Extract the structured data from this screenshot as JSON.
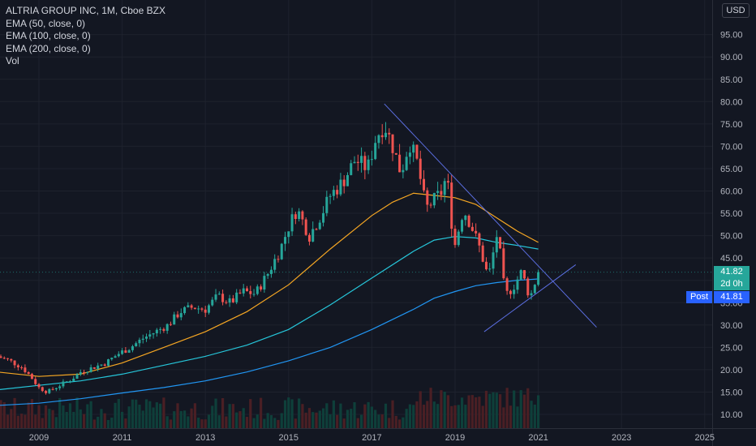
{
  "legend": {
    "title": "ALTRIA GROUP INC, 1M, Cboe BZX",
    "ema50": "EMA (50, close, 0)",
    "ema100": "EMA (100, close, 0)",
    "ema200": "EMA (200, close, 0)",
    "vol": "Vol"
  },
  "currency": "USD",
  "price_tag": "41.82",
  "countdown": "2d 0h",
  "post_label": "Post",
  "post_value": "41.81",
  "colors": {
    "background": "#131722",
    "grid": "#1e222d",
    "text": "#b2b5be",
    "up": "#26a69a",
    "down": "#ef5350",
    "vol_up": "#0e3f3a",
    "vol_down": "#4a1f24",
    "ema50": "#f5a623",
    "ema100": "#26c6da",
    "ema200": "#2196f3",
    "trendline": "#5b6ee1",
    "crosshair": "#2962ff"
  },
  "chart_data": {
    "type": "candlestick",
    "x_unit": "year",
    "y_unit": "USD",
    "y_ticks": [
      10,
      15,
      20,
      25,
      30,
      35,
      40,
      45,
      50,
      55,
      60,
      65,
      70,
      75,
      80,
      85,
      90,
      95
    ],
    "y_tick_labels": [
      "10.00",
      "15.00",
      "20.00",
      "25.00",
      "30.00",
      "35.00",
      "40.00",
      "45.00",
      "50.00",
      "55.00",
      "60.00",
      "65.00",
      "70.00",
      "75.00",
      "80.00",
      "85.00",
      "90.00",
      "95.00"
    ],
    "x_ticks": [
      2009,
      2011,
      2013,
      2015,
      2017,
      2019,
      2021,
      2023,
      2025
    ],
    "x_tick_labels": [
      "2009",
      "2011",
      "2013",
      "2015",
      "2017",
      "2019",
      "2021",
      "2023",
      "2025"
    ],
    "price_path": [
      [
        2008.0,
        23.0
      ],
      [
        2008.3,
        22.0
      ],
      [
        2008.6,
        20.5
      ],
      [
        2008.8,
        18.5
      ],
      [
        2009.0,
        16.0
      ],
      [
        2009.2,
        15.0
      ],
      [
        2009.5,
        16.5
      ],
      [
        2009.8,
        18.0
      ],
      [
        2010.0,
        19.5
      ],
      [
        2010.3,
        20.5
      ],
      [
        2010.6,
        21.5
      ],
      [
        2010.9,
        23.5
      ],
      [
        2011.2,
        25.0
      ],
      [
        2011.5,
        27.0
      ],
      [
        2011.8,
        28.5
      ],
      [
        2012.1,
        30.0
      ],
      [
        2012.4,
        33.0
      ],
      [
        2012.7,
        34.0
      ],
      [
        2013.0,
        33.5
      ],
      [
        2013.3,
        36.5
      ],
      [
        2013.6,
        35.0
      ],
      [
        2013.9,
        37.5
      ],
      [
        2014.2,
        37.0
      ],
      [
        2014.5,
        41.5
      ],
      [
        2014.8,
        47.0
      ],
      [
        2015.0,
        52.0
      ],
      [
        2015.2,
        56.0
      ],
      [
        2015.5,
        50.0
      ],
      [
        2015.8,
        55.0
      ],
      [
        2016.0,
        59.0
      ],
      [
        2016.3,
        62.0
      ],
      [
        2016.6,
        67.0
      ],
      [
        2016.9,
        65.0
      ],
      [
        2017.1,
        72.0
      ],
      [
        2017.3,
        75.0
      ],
      [
        2017.5,
        70.0
      ],
      [
        2017.7,
        64.0
      ],
      [
        2017.9,
        71.0
      ],
      [
        2018.1,
        66.0
      ],
      [
        2018.3,
        56.0
      ],
      [
        2018.5,
        58.0
      ],
      [
        2018.7,
        60.0
      ],
      [
        2018.8,
        64.0
      ],
      [
        2018.9,
        54.0
      ],
      [
        2019.0,
        48.0
      ],
      [
        2019.2,
        56.0
      ],
      [
        2019.4,
        52.0
      ],
      [
        2019.6,
        47.0
      ],
      [
        2019.8,
        40.5
      ],
      [
        2020.0,
        50.0
      ],
      [
        2020.1,
        45.0
      ],
      [
        2020.2,
        36.5
      ],
      [
        2020.4,
        38.5
      ],
      [
        2020.6,
        42.0
      ],
      [
        2020.8,
        36.0
      ],
      [
        2020.95,
        40.5
      ],
      [
        2021.0,
        41.8
      ]
    ],
    "ema50": [
      [
        2008.0,
        19.5
      ],
      [
        2009.0,
        18.5
      ],
      [
        2010.0,
        19.0
      ],
      [
        2011.0,
        21.5
      ],
      [
        2012.0,
        25.0
      ],
      [
        2013.0,
        28.5
      ],
      [
        2014.0,
        33.0
      ],
      [
        2015.0,
        39.0
      ],
      [
        2016.0,
        47.0
      ],
      [
        2017.0,
        54.5
      ],
      [
        2017.5,
        57.5
      ],
      [
        2018.0,
        59.5
      ],
      [
        2018.5,
        59.0
      ],
      [
        2019.0,
        58.5
      ],
      [
        2019.5,
        57.0
      ],
      [
        2020.0,
        54.0
      ],
      [
        2020.5,
        51.0
      ],
      [
        2021.0,
        48.5
      ]
    ],
    "ema100": [
      [
        2008.0,
        15.5
      ],
      [
        2009.0,
        16.5
      ],
      [
        2010.0,
        17.5
      ],
      [
        2011.0,
        19.0
      ],
      [
        2012.0,
        21.0
      ],
      [
        2013.0,
        23.0
      ],
      [
        2014.0,
        25.5
      ],
      [
        2015.0,
        29.0
      ],
      [
        2016.0,
        34.5
      ],
      [
        2017.0,
        40.5
      ],
      [
        2018.0,
        46.5
      ],
      [
        2018.5,
        49.0
      ],
      [
        2019.0,
        49.8
      ],
      [
        2019.5,
        49.5
      ],
      [
        2020.0,
        48.5
      ],
      [
        2020.5,
        47.8
      ],
      [
        2021.0,
        47.0
      ]
    ],
    "ema200": [
      [
        2008.0,
        12.0
      ],
      [
        2009.0,
        12.5
      ],
      [
        2010.0,
        13.5
      ],
      [
        2011.0,
        14.8
      ],
      [
        2012.0,
        16.0
      ],
      [
        2013.0,
        17.5
      ],
      [
        2014.0,
        19.5
      ],
      [
        2015.0,
        22.0
      ],
      [
        2016.0,
        25.0
      ],
      [
        2017.0,
        29.0
      ],
      [
        2018.0,
        33.5
      ],
      [
        2018.5,
        36.0
      ],
      [
        2019.0,
        37.5
      ],
      [
        2019.5,
        38.8
      ],
      [
        2020.0,
        39.5
      ],
      [
        2020.5,
        40.0
      ],
      [
        2021.0,
        40.3
      ]
    ],
    "trendlines": [
      [
        [
          2017.3,
          79.5
        ],
        [
          2022.4,
          29.5
        ]
      ],
      [
        [
          2019.7,
          28.5
        ],
        [
          2021.9,
          43.5
        ]
      ]
    ],
    "current_price": 41.82,
    "post_price": 41.81
  }
}
